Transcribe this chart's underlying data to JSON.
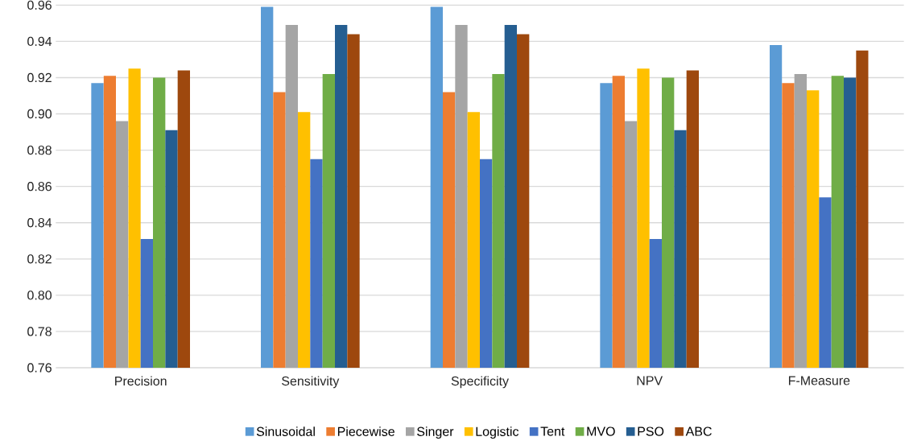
{
  "chart_data": {
    "type": "bar",
    "categories": [
      "Precision",
      "Sensitivity",
      "Specificity",
      "NPV",
      "F-Measure"
    ],
    "series": [
      {
        "name": "Sinusoidal",
        "color": "#5b9bd5",
        "values": [
          0.917,
          0.959,
          0.959,
          0.917,
          0.938
        ]
      },
      {
        "name": "Piecewise",
        "color": "#ed7d31",
        "values": [
          0.921,
          0.912,
          0.912,
          0.921,
          0.917
        ]
      },
      {
        "name": "Singer",
        "color": "#a5a5a5",
        "values": [
          0.896,
          0.949,
          0.949,
          0.896,
          0.922
        ]
      },
      {
        "name": "Logistic",
        "color": "#ffc000",
        "values": [
          0.925,
          0.901,
          0.901,
          0.925,
          0.913
        ]
      },
      {
        "name": "Tent",
        "color": "#4472c4",
        "values": [
          0.831,
          0.875,
          0.875,
          0.831,
          0.854
        ]
      },
      {
        "name": "MVO",
        "color": "#70ad47",
        "values": [
          0.92,
          0.922,
          0.922,
          0.92,
          0.921
        ]
      },
      {
        "name": "PSO",
        "color": "#255e91",
        "values": [
          0.891,
          0.949,
          0.949,
          0.891,
          0.92
        ]
      },
      {
        "name": "ABC",
        "color": "#9e480e",
        "values": [
          0.924,
          0.944,
          0.944,
          0.924,
          0.935
        ]
      }
    ],
    "ylim": [
      0.76,
      0.96
    ],
    "yticks": [
      {
        "value": 0.76,
        "label": "0.76"
      },
      {
        "value": 0.78,
        "label": "0.78"
      },
      {
        "value": 0.8,
        "label": "0.80"
      },
      {
        "value": 0.82,
        "label": "0.82"
      },
      {
        "value": 0.84,
        "label": "0.84"
      },
      {
        "value": 0.86,
        "label": "0.86"
      },
      {
        "value": 0.88,
        "label": "0.88"
      },
      {
        "value": 0.9,
        "label": "0.90"
      },
      {
        "value": 0.92,
        "label": "0.92"
      },
      {
        "value": 0.94,
        "label": "0.94"
      },
      {
        "value": 0.96,
        "label": "0.96"
      }
    ],
    "grid": "y",
    "legend": "bottom"
  }
}
